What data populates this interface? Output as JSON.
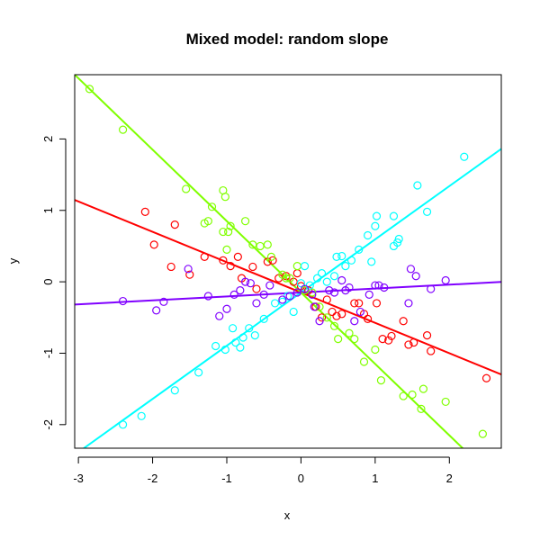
{
  "chart_data": {
    "type": "scatter",
    "title": "Mixed model: random slope",
    "xlabel": "x",
    "ylabel": "y",
    "xlim": [
      -3.05,
      2.7
    ],
    "ylim": [
      -2.33,
      2.9
    ],
    "xticks": [
      -3,
      -2,
      -1,
      0,
      1,
      2
    ],
    "yticks": [
      -2,
      -1,
      0,
      1,
      2
    ],
    "xtick_labels": [
      "-3",
      "-2",
      "-1",
      "0",
      "1",
      "2"
    ],
    "ytick_labels": [
      "-2",
      "-1",
      "0",
      "1",
      "2"
    ],
    "grid": false,
    "series": [
      {
        "color": "#ff0000",
        "line": {
          "intercept": -0.15,
          "slope": -0.425
        },
        "points": [
          [
            -2.1,
            0.98
          ],
          [
            -1.98,
            0.52
          ],
          [
            -1.7,
            0.8
          ],
          [
            -1.75,
            0.21
          ],
          [
            -1.5,
            0.1
          ],
          [
            -1.3,
            0.35
          ],
          [
            -1.05,
            0.3
          ],
          [
            -0.95,
            0.22
          ],
          [
            -0.85,
            0.35
          ],
          [
            -0.8,
            0.05
          ],
          [
            -0.65,
            0.21
          ],
          [
            -0.6,
            -0.1
          ],
          [
            -0.45,
            0.28
          ],
          [
            -0.38,
            0.3
          ],
          [
            -0.3,
            0.05
          ],
          [
            -0.2,
            0.08
          ],
          [
            -0.1,
            0.0
          ],
          [
            -0.05,
            0.12
          ],
          [
            0.0,
            -0.06
          ],
          [
            0.1,
            -0.12
          ],
          [
            0.2,
            -0.35
          ],
          [
            0.28,
            -0.5
          ],
          [
            0.35,
            -0.25
          ],
          [
            0.42,
            -0.42
          ],
          [
            0.48,
            -0.48
          ],
          [
            0.55,
            -0.45
          ],
          [
            0.72,
            -0.3
          ],
          [
            0.78,
            -0.3
          ],
          [
            0.85,
            -0.45
          ],
          [
            0.9,
            -0.52
          ],
          [
            1.02,
            -0.3
          ],
          [
            1.1,
            -0.8
          ],
          [
            1.18,
            -0.82
          ],
          [
            1.22,
            -0.76
          ],
          [
            1.38,
            -0.55
          ],
          [
            1.45,
            -0.88
          ],
          [
            1.52,
            -0.85
          ],
          [
            1.7,
            -0.75
          ],
          [
            1.75,
            -0.97
          ],
          [
            2.5,
            -1.35
          ]
        ]
      },
      {
        "color": "#80ff00",
        "line": {
          "intercept": -0.15,
          "slope": -1.0
        },
        "points": [
          [
            -2.85,
            2.7
          ],
          [
            -2.4,
            2.13
          ],
          [
            -1.55,
            1.3
          ],
          [
            -1.3,
            0.82
          ],
          [
            -1.25,
            0.85
          ],
          [
            -1.2,
            1.05
          ],
          [
            -1.05,
            1.28
          ],
          [
            -1.02,
            1.19
          ],
          [
            -1.05,
            0.7
          ],
          [
            -0.98,
            0.7
          ],
          [
            -0.95,
            0.78
          ],
          [
            -1.0,
            0.45
          ],
          [
            -0.75,
            0.85
          ],
          [
            -0.65,
            0.52
          ],
          [
            -0.55,
            0.5
          ],
          [
            -0.45,
            0.52
          ],
          [
            -0.4,
            0.35
          ],
          [
            -0.25,
            0.1
          ],
          [
            -0.2,
            0.05
          ],
          [
            -0.15,
            0.05
          ],
          [
            -0.05,
            0.22
          ],
          [
            0.05,
            -0.12
          ],
          [
            0.15,
            -0.15
          ],
          [
            0.25,
            -0.35
          ],
          [
            0.35,
            -0.5
          ],
          [
            0.45,
            -0.62
          ],
          [
            0.5,
            -0.8
          ],
          [
            0.65,
            -0.72
          ],
          [
            0.72,
            -0.8
          ],
          [
            0.85,
            -1.12
          ],
          [
            1.0,
            -0.95
          ],
          [
            1.08,
            -1.38
          ],
          [
            1.38,
            -1.6
          ],
          [
            1.5,
            -1.58
          ],
          [
            1.62,
            -1.78
          ],
          [
            1.65,
            -1.5
          ],
          [
            1.95,
            -1.68
          ],
          [
            2.45,
            -2.13
          ]
        ]
      },
      {
        "color": "#00ffff",
        "line": {
          "intercept": -0.15,
          "slope": 0.745
        },
        "points": [
          [
            -2.4,
            -2.0
          ],
          [
            -2.15,
            -1.88
          ],
          [
            -1.7,
            -1.52
          ],
          [
            -1.38,
            -1.27
          ],
          [
            -1.15,
            -0.9
          ],
          [
            -1.02,
            -0.95
          ],
          [
            -0.92,
            -0.65
          ],
          [
            -0.88,
            -0.85
          ],
          [
            -0.82,
            -0.92
          ],
          [
            -0.78,
            -0.78
          ],
          [
            -0.7,
            -0.65
          ],
          [
            -0.62,
            -0.75
          ],
          [
            -0.5,
            -0.52
          ],
          [
            -0.35,
            -0.3
          ],
          [
            -0.25,
            -0.28
          ],
          [
            -0.18,
            -0.2
          ],
          [
            -0.1,
            -0.42
          ],
          [
            0.0,
            -0.02
          ],
          [
            0.05,
            0.22
          ],
          [
            0.12,
            -0.05
          ],
          [
            0.22,
            0.05
          ],
          [
            0.28,
            0.12
          ],
          [
            0.35,
            0.0
          ],
          [
            0.45,
            0.08
          ],
          [
            0.48,
            0.35
          ],
          [
            0.55,
            0.36
          ],
          [
            0.6,
            0.22
          ],
          [
            0.68,
            0.3
          ],
          [
            0.78,
            0.45
          ],
          [
            0.9,
            0.65
          ],
          [
            0.95,
            0.28
          ],
          [
            1.02,
            0.92
          ],
          [
            1.0,
            0.78
          ],
          [
            1.25,
            0.92
          ],
          [
            1.3,
            0.55
          ],
          [
            1.32,
            0.6
          ],
          [
            1.25,
            0.5
          ],
          [
            1.57,
            1.35
          ],
          [
            1.7,
            0.98
          ],
          [
            2.2,
            1.75
          ]
        ]
      },
      {
        "color": "#8000ff",
        "line": {
          "intercept": -0.15,
          "slope": 0.055
        },
        "points": [
          [
            -2.4,
            -0.27
          ],
          [
            -1.95,
            -0.4
          ],
          [
            -1.85,
            -0.28
          ],
          [
            -1.52,
            0.18
          ],
          [
            -1.25,
            -0.2
          ],
          [
            -1.1,
            -0.48
          ],
          [
            -1.0,
            -0.38
          ],
          [
            -0.9,
            -0.18
          ],
          [
            -0.82,
            -0.12
          ],
          [
            -0.75,
            0.0
          ],
          [
            -0.68,
            -0.02
          ],
          [
            -0.6,
            -0.3
          ],
          [
            -0.5,
            -0.18
          ],
          [
            -0.42,
            -0.05
          ],
          [
            -0.25,
            -0.25
          ],
          [
            -0.15,
            -0.2
          ],
          [
            -0.05,
            -0.15
          ],
          [
            0.05,
            -0.1
          ],
          [
            0.15,
            -0.18
          ],
          [
            0.18,
            -0.35
          ],
          [
            0.25,
            -0.55
          ],
          [
            0.38,
            -0.12
          ],
          [
            0.45,
            -0.15
          ],
          [
            0.55,
            0.02
          ],
          [
            0.6,
            -0.12
          ],
          [
            0.65,
            -0.08
          ],
          [
            0.72,
            -0.55
          ],
          [
            0.8,
            -0.42
          ],
          [
            0.92,
            -0.18
          ],
          [
            1.0,
            -0.05
          ],
          [
            1.05,
            -0.05
          ],
          [
            1.12,
            -0.08
          ],
          [
            1.45,
            -0.3
          ],
          [
            1.48,
            0.18
          ],
          [
            1.55,
            0.08
          ],
          [
            1.75,
            -0.1
          ],
          [
            1.95,
            0.02
          ]
        ]
      }
    ]
  }
}
